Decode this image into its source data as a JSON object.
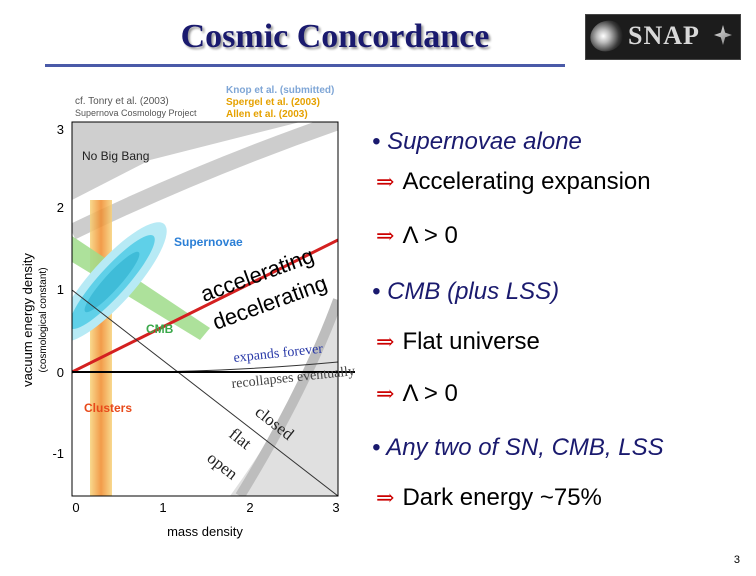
{
  "slide": {
    "title": "Cosmic Concordance",
    "page_number": "3"
  },
  "logo": {
    "text": "SNAP"
  },
  "plot": {
    "credit_left": "cf. Tonry et al. (2003)",
    "credit_project": "Supernova Cosmology Project",
    "credits_right": [
      {
        "text": "Knop et al. (submitted)",
        "color": "#7fa6d6"
      },
      {
        "text": "Spergel et al. (2003)",
        "color": "#e5a100"
      },
      {
        "text": "Allen et al. (2003)",
        "color": "#e5a100"
      }
    ],
    "xlabel": "mass density",
    "ylabel": "vacuum energy density",
    "ylabel2": "(cosmological constant)",
    "x_ticks": [
      "0",
      "1",
      "2",
      "3"
    ],
    "y_ticks": [
      "3",
      "2",
      "1",
      "0",
      "-1"
    ],
    "xlim": [
      0,
      3
    ],
    "ylim": [
      -1.5,
      3.1
    ],
    "regions": {
      "no_big_bang": "No Big Bang",
      "supernovae": "Supernovae",
      "cmb": "CMB",
      "clusters": "Clusters"
    },
    "curve_labels": {
      "accelerating": "accelerating",
      "decelerating": "decelerating",
      "expands_forever": "expands forever",
      "recollapses": "recollapses eventually",
      "closed": "closed",
      "flat": "flat",
      "open": "open"
    },
    "colors": {
      "supernovae": "#2b7fd6",
      "supernovae_inner": "#5fd0e8",
      "cmb": "#3aa84a",
      "clusters": "#e84a1a",
      "cluster_band": "#f2a83a",
      "red_line": "#d42020",
      "no_big_bang_region": "#c8c8c8"
    },
    "lines": {
      "flat_line": [
        [
          0,
          1
        ],
        [
          3,
          -2
        ]
      ],
      "accel_line": [
        [
          0,
          0
        ],
        [
          3,
          1.5
        ]
      ]
    }
  },
  "bullets": [
    {
      "kind": "bullet",
      "text": "Supernovae alone",
      "italic": true
    },
    {
      "kind": "implies",
      "text": "Accelerating expansion"
    },
    {
      "kind": "implies",
      "text": "Λ > 0"
    },
    {
      "kind": "bullet",
      "text": "CMB (plus LSS)",
      "italic": true
    },
    {
      "kind": "implies",
      "text": "Flat universe"
    },
    {
      "kind": "implies",
      "text": "Λ > 0"
    },
    {
      "kind": "bullet",
      "text": "Any two of SN, CMB, LSS",
      "italic": true
    },
    {
      "kind": "implies",
      "text": "Dark energy ~75%"
    }
  ]
}
